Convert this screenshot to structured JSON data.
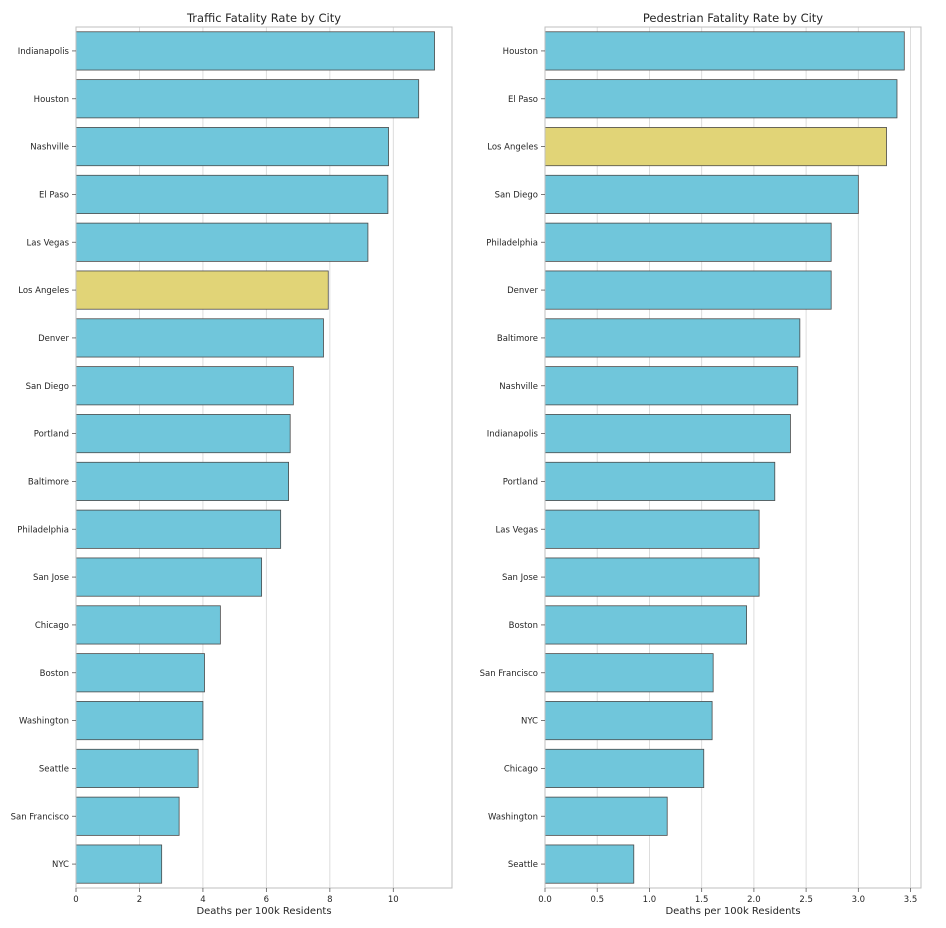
{
  "colors": {
    "default": "#70c6db",
    "highlight": "#e1d477"
  },
  "chart_data": [
    {
      "type": "bar",
      "orientation": "horizontal",
      "title": "Traffic Fatality Rate by City",
      "xlabel": "Deaths per 100k Residents",
      "ylabel": "",
      "xlim": [
        0,
        11.85
      ],
      "xticks": [
        0,
        2,
        4,
        6,
        8,
        10
      ],
      "xtick_labels": [
        "0",
        "2",
        "4",
        "6",
        "8",
        "10"
      ],
      "grid": "vertical",
      "highlight": "Los Angeles",
      "categories": [
        "Indianapolis",
        "Houston",
        "Nashville",
        "El Paso",
        "Las Vegas",
        "Los Angeles",
        "Denver",
        "San Diego",
        "Portland",
        "Baltimore",
        "Philadelphia",
        "San Jose",
        "Chicago",
        "Boston",
        "Washington",
        "Seattle",
        "San Francisco",
        "NYC"
      ],
      "values": [
        11.3,
        10.8,
        9.85,
        9.83,
        9.2,
        7.95,
        7.8,
        6.85,
        6.75,
        6.7,
        6.45,
        5.85,
        4.55,
        4.05,
        4.0,
        3.85,
        3.25,
        2.7
      ]
    },
    {
      "type": "bar",
      "orientation": "horizontal",
      "title": "Pedestrian Fatality Rate by City",
      "xlabel": "Deaths per 100k Residents",
      "ylabel": "",
      "xlim": [
        0,
        3.6
      ],
      "xticks": [
        0,
        0.5,
        1.0,
        1.5,
        2.0,
        2.5,
        3.0,
        3.5
      ],
      "xtick_labels": [
        "0.0",
        "0.5",
        "1.0",
        "1.5",
        "2.0",
        "2.5",
        "3.0",
        "3.5"
      ],
      "grid": "vertical",
      "highlight": "Los Angeles",
      "categories": [
        "Houston",
        "El Paso",
        "Los Angeles",
        "San Diego",
        "Philadelphia",
        "Denver",
        "Baltimore",
        "Nashville",
        "Indianapolis",
        "Portland",
        "Las Vegas",
        "San Jose",
        "Boston",
        "San Francisco",
        "NYC",
        "Chicago",
        "Washington",
        "Seattle"
      ],
      "values": [
        3.44,
        3.37,
        3.27,
        3.0,
        2.74,
        2.74,
        2.44,
        2.42,
        2.35,
        2.2,
        2.05,
        2.05,
        1.93,
        1.61,
        1.6,
        1.52,
        1.17,
        0.85
      ]
    }
  ]
}
